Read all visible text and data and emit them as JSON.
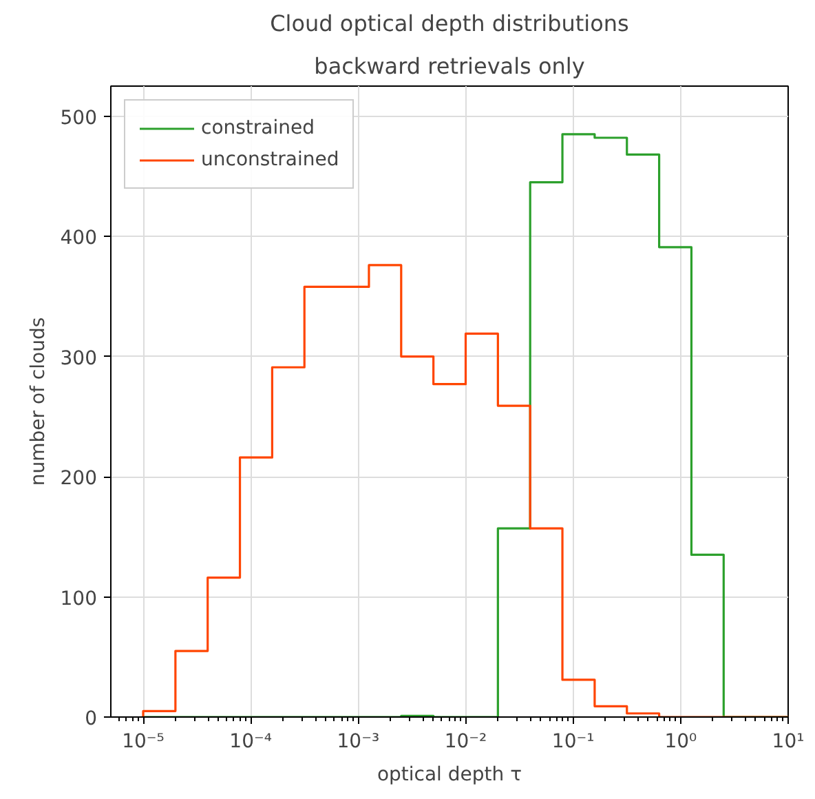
{
  "chart_data": {
    "type": "histogram",
    "title": "Cloud optical depth distributions",
    "subtitle": "backward retrievals only",
    "xlabel": "optical depth τ",
    "ylabel": "number of clouds",
    "log": "x",
    "bins": [
      1e-05,
      1.995e-05,
      3.981e-05,
      7.943e-05,
      0.0001585,
      0.0003162,
      0.000631,
      0.001259,
      0.002512,
      0.005012,
      0.01,
      0.01995,
      0.03981,
      0.07943,
      0.1585,
      0.3162,
      0.631,
      1.259,
      2.512,
      5.012,
      10
    ],
    "series": [
      {
        "name": "constrained",
        "color": "#2ca02c",
        "values": [
          0,
          0,
          0,
          0,
          0,
          0,
          0,
          0,
          1,
          0,
          0,
          157,
          445,
          485,
          482,
          468,
          391,
          135,
          0,
          0
        ]
      },
      {
        "name": "unconstrained",
        "color": "#ff4500",
        "values": [
          5,
          55,
          116,
          216,
          291,
          358,
          358,
          376,
          300,
          277,
          319,
          259,
          157,
          31,
          9,
          3,
          0,
          0,
          0,
          0
        ]
      }
    ],
    "xlim": [
      5e-06,
      10
    ],
    "ylim": [
      0,
      525
    ],
    "xticks": [
      {
        "value": 1e-05,
        "label": "10⁻⁵"
      },
      {
        "value": 0.0001,
        "label": "10⁻⁴"
      },
      {
        "value": 0.001,
        "label": "10⁻³"
      },
      {
        "value": 0.01,
        "label": "10⁻²"
      },
      {
        "value": 0.1,
        "label": "10⁻¹"
      },
      {
        "value": 1,
        "label": "10⁰"
      },
      {
        "value": 10,
        "label": "10¹"
      }
    ],
    "yticks": [
      0,
      100,
      200,
      300,
      400,
      500
    ],
    "grid": true,
    "legend": "top left"
  }
}
